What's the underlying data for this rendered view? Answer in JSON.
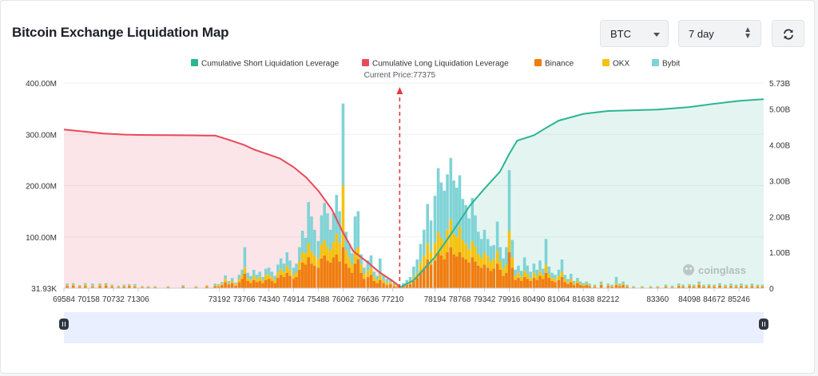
{
  "header": {
    "title": "Bitcoin Exchange Liquidation Map",
    "coin_select": "BTC",
    "range_select": "7 day",
    "refresh_icon": "refresh-icon"
  },
  "colors": {
    "short": "#2bb593",
    "long": "#e84a5a",
    "binance": "#f07d10",
    "okx": "#f5c211",
    "bybit": "#7fd3d6"
  },
  "chart_data": {
    "type": "bar",
    "current_price_label": "Current Price:77375",
    "current_price": 77375,
    "watermark": "coinglass",
    "legend": [
      {
        "name": "Cumulative Short Liquidation Leverage",
        "color": "#2bb593"
      },
      {
        "name": "Cumulative Long Liquidation Leverage",
        "color": "#e84a5a"
      },
      {
        "name": "Binance",
        "color": "#f07d10"
      },
      {
        "name": "OKX",
        "color": "#f5c211"
      },
      {
        "name": "Bybit",
        "color": "#7fd3d6"
      }
    ],
    "x_range": [
      69584,
      85820
    ],
    "x_ticks": [
      "69584",
      "70158",
      "70732",
      "71306",
      "73192",
      "73766",
      "74340",
      "74914",
      "75488",
      "76062",
      "76636",
      "77210",
      "78194",
      "78768",
      "79342",
      "79916",
      "80490",
      "81064",
      "81638",
      "82212",
      "83360",
      "84098",
      "84672",
      "85246"
    ],
    "y_left_ticks": [
      "31.93K",
      "100.00M",
      "200.00M",
      "300.00M",
      "400.00M"
    ],
    "y_left_range": [
      0,
      400
    ],
    "y_left_unit": "M",
    "y_right_ticks": [
      "0",
      "1.00B",
      "2.00B",
      "3.00B",
      "4.00B",
      "5.00B",
      "5.73B"
    ],
    "y_right_range": [
      0,
      5.73
    ],
    "y_right_unit": "B",
    "bars": [
      {
        "x": 69660,
        "b": 4,
        "o": 2,
        "y": 3
      },
      {
        "x": 69800,
        "b": 5,
        "o": 2,
        "y": 3
      },
      {
        "x": 69950,
        "b": 3,
        "o": 1,
        "y": 2
      },
      {
        "x": 70080,
        "b": 4,
        "o": 3,
        "y": 3
      },
      {
        "x": 70250,
        "b": 3,
        "o": 2,
        "y": 4
      },
      {
        "x": 70420,
        "b": 4,
        "o": 3,
        "y": 2
      },
      {
        "x": 70560,
        "b": 5,
        "o": 2,
        "y": 3
      },
      {
        "x": 70700,
        "b": 3,
        "o": 2,
        "y": 2
      },
      {
        "x": 70850,
        "b": 2,
        "o": 1,
        "y": 2
      },
      {
        "x": 70980,
        "b": 3,
        "o": 2,
        "y": 2
      },
      {
        "x": 71100,
        "b": 4,
        "o": 2,
        "y": 2
      },
      {
        "x": 71230,
        "b": 3,
        "o": 2,
        "y": 3
      },
      {
        "x": 71400,
        "b": 2,
        "o": 1,
        "y": 1
      },
      {
        "x": 71540,
        "b": 2,
        "o": 1,
        "y": 1
      },
      {
        "x": 71700,
        "b": 2,
        "o": 1,
        "y": 1
      },
      {
        "x": 72000,
        "b": 2,
        "o": 1,
        "y": 1
      },
      {
        "x": 72350,
        "b": 3,
        "o": 1,
        "y": 2
      },
      {
        "x": 72650,
        "b": 2,
        "o": 1,
        "y": 1
      },
      {
        "x": 72900,
        "b": 3,
        "o": 2,
        "y": 1
      },
      {
        "x": 73090,
        "b": 4,
        "o": 2,
        "y": 3
      },
      {
        "x": 73170,
        "b": 3,
        "o": 2,
        "y": 3
      },
      {
        "x": 73250,
        "b": 6,
        "o": 3,
        "y": 3
      },
      {
        "x": 73330,
        "b": 12,
        "o": 6,
        "y": 7
      },
      {
        "x": 73410,
        "b": 7,
        "o": 3,
        "y": 4
      },
      {
        "x": 73490,
        "b": 10,
        "o": 4,
        "y": 6
      },
      {
        "x": 73570,
        "b": 5,
        "o": 3,
        "y": 3
      },
      {
        "x": 73650,
        "b": 12,
        "o": 6,
        "y": 8
      },
      {
        "x": 73720,
        "b": 18,
        "o": 8,
        "y": 10
      },
      {
        "x": 73780,
        "b": 28,
        "o": 12,
        "y": 40
      },
      {
        "x": 73850,
        "b": 14,
        "o": 6,
        "y": 10
      },
      {
        "x": 73920,
        "b": 10,
        "o": 6,
        "y": 8
      },
      {
        "x": 73990,
        "b": 16,
        "o": 8,
        "y": 12
      },
      {
        "x": 74060,
        "b": 12,
        "o": 6,
        "y": 8
      },
      {
        "x": 74130,
        "b": 14,
        "o": 8,
        "y": 10
      },
      {
        "x": 74200,
        "b": 10,
        "o": 6,
        "y": 6
      },
      {
        "x": 74270,
        "b": 16,
        "o": 10,
        "y": 12
      },
      {
        "x": 74340,
        "b": 18,
        "o": 8,
        "y": 14
      },
      {
        "x": 74410,
        "b": 14,
        "o": 8,
        "y": 10
      },
      {
        "x": 74480,
        "b": 10,
        "o": 6,
        "y": 8
      },
      {
        "x": 74550,
        "b": 20,
        "o": 10,
        "y": 16
      },
      {
        "x": 74620,
        "b": 26,
        "o": 12,
        "y": 20
      },
      {
        "x": 74690,
        "b": 22,
        "o": 10,
        "y": 16
      },
      {
        "x": 74760,
        "b": 30,
        "o": 14,
        "y": 26
      },
      {
        "x": 74830,
        "b": 24,
        "o": 12,
        "y": 18
      },
      {
        "x": 74914,
        "b": 18,
        "o": 8,
        "y": 14
      },
      {
        "x": 74980,
        "b": 22,
        "o": 10,
        "y": 16
      },
      {
        "x": 75050,
        "b": 36,
        "o": 16,
        "y": 28
      },
      {
        "x": 75120,
        "b": 50,
        "o": 20,
        "y": 42
      },
      {
        "x": 75190,
        "b": 46,
        "o": 22,
        "y": 30
      },
      {
        "x": 75260,
        "b": 60,
        "o": 28,
        "y": 80
      },
      {
        "x": 75330,
        "b": 48,
        "o": 24,
        "y": 68
      },
      {
        "x": 75400,
        "b": 44,
        "o": 20,
        "y": 50
      },
      {
        "x": 75488,
        "b": 40,
        "o": 18,
        "y": 34
      },
      {
        "x": 75560,
        "b": 58,
        "o": 28,
        "y": 56
      },
      {
        "x": 75630,
        "b": 64,
        "o": 30,
        "y": 72
      },
      {
        "x": 75700,
        "b": 54,
        "o": 26,
        "y": 66
      },
      {
        "x": 75770,
        "b": 50,
        "o": 24,
        "y": 40
      },
      {
        "x": 75840,
        "b": 60,
        "o": 30,
        "y": 56
      },
      {
        "x": 75910,
        "b": 66,
        "o": 40,
        "y": 76
      },
      {
        "x": 75980,
        "b": 52,
        "o": 36,
        "y": 62
      },
      {
        "x": 76062,
        "b": 80,
        "o": 120,
        "y": 160
      },
      {
        "x": 76130,
        "b": 48,
        "o": 26,
        "y": 36
      },
      {
        "x": 76200,
        "b": 40,
        "o": 20,
        "y": 26
      },
      {
        "x": 76270,
        "b": 30,
        "o": 16,
        "y": 22
      },
      {
        "x": 76340,
        "b": 48,
        "o": 26,
        "y": 66
      },
      {
        "x": 76410,
        "b": 56,
        "o": 24,
        "y": 70
      },
      {
        "x": 76480,
        "b": 30,
        "o": 16,
        "y": 20
      },
      {
        "x": 76550,
        "b": 18,
        "o": 10,
        "y": 12
      },
      {
        "x": 76636,
        "b": 22,
        "o": 12,
        "y": 20
      },
      {
        "x": 76710,
        "b": 26,
        "o": 14,
        "y": 24
      },
      {
        "x": 76780,
        "b": 14,
        "o": 8,
        "y": 10
      },
      {
        "x": 76850,
        "b": 10,
        "o": 6,
        "y": 8
      },
      {
        "x": 76920,
        "b": 16,
        "o": 10,
        "y": 32
      },
      {
        "x": 77000,
        "b": 10,
        "o": 6,
        "y": 10
      },
      {
        "x": 77080,
        "b": 6,
        "o": 4,
        "y": 8
      },
      {
        "x": 77160,
        "b": 8,
        "o": 4,
        "y": 6
      },
      {
        "x": 77250,
        "b": 4,
        "o": 3,
        "y": 4
      },
      {
        "x": 77330,
        "b": 3,
        "o": 2,
        "y": 2
      },
      {
        "x": 77460,
        "b": 4,
        "o": 2,
        "y": 4
      },
      {
        "x": 77540,
        "b": 6,
        "o": 4,
        "y": 6
      },
      {
        "x": 77620,
        "b": 8,
        "o": 4,
        "y": 10
      },
      {
        "x": 77700,
        "b": 14,
        "o": 8,
        "y": 20
      },
      {
        "x": 77780,
        "b": 20,
        "o": 10,
        "y": 26
      },
      {
        "x": 77860,
        "b": 32,
        "o": 18,
        "y": 36
      },
      {
        "x": 77940,
        "b": 40,
        "o": 24,
        "y": 50
      },
      {
        "x": 78020,
        "b": 56,
        "o": 32,
        "y": 76
      },
      {
        "x": 78100,
        "b": 46,
        "o": 26,
        "y": 60
      },
      {
        "x": 78194,
        "b": 54,
        "o": 34,
        "y": 92
      },
      {
        "x": 78270,
        "b": 70,
        "o": 40,
        "y": 124
      },
      {
        "x": 78340,
        "b": 64,
        "o": 34,
        "y": 108
      },
      {
        "x": 78410,
        "b": 56,
        "o": 36,
        "y": 98
      },
      {
        "x": 78480,
        "b": 70,
        "o": 44,
        "y": 108
      },
      {
        "x": 78560,
        "b": 80,
        "o": 54,
        "y": 120
      },
      {
        "x": 78630,
        "b": 66,
        "o": 40,
        "y": 104
      },
      {
        "x": 78700,
        "b": 62,
        "o": 38,
        "y": 96
      },
      {
        "x": 78768,
        "b": 70,
        "o": 50,
        "y": 100
      },
      {
        "x": 78840,
        "b": 60,
        "o": 34,
        "y": 80
      },
      {
        "x": 78910,
        "b": 56,
        "o": 30,
        "y": 76
      },
      {
        "x": 78980,
        "b": 50,
        "o": 26,
        "y": 60
      },
      {
        "x": 79060,
        "b": 60,
        "o": 32,
        "y": 84
      },
      {
        "x": 79130,
        "b": 52,
        "o": 30,
        "y": 60
      },
      {
        "x": 79200,
        "b": 44,
        "o": 22,
        "y": 44
      },
      {
        "x": 79270,
        "b": 40,
        "o": 20,
        "y": 36
      },
      {
        "x": 79342,
        "b": 46,
        "o": 24,
        "y": 44
      },
      {
        "x": 79420,
        "b": 40,
        "o": 22,
        "y": 34
      },
      {
        "x": 79490,
        "b": 34,
        "o": 18,
        "y": 30
      },
      {
        "x": 79560,
        "b": 38,
        "o": 20,
        "y": 26
      },
      {
        "x": 79640,
        "b": 48,
        "o": 26,
        "y": 56
      },
      {
        "x": 79710,
        "b": 36,
        "o": 16,
        "y": 28
      },
      {
        "x": 79780,
        "b": 24,
        "o": 14,
        "y": 20
      },
      {
        "x": 79850,
        "b": 30,
        "o": 16,
        "y": 34
      },
      {
        "x": 79916,
        "b": 70,
        "o": 42,
        "y": 118
      },
      {
        "x": 79990,
        "b": 40,
        "o": 20,
        "y": 34
      },
      {
        "x": 80060,
        "b": 16,
        "o": 8,
        "y": 12
      },
      {
        "x": 80130,
        "b": 20,
        "o": 10,
        "y": 14
      },
      {
        "x": 80200,
        "b": 14,
        "o": 8,
        "y": 12
      },
      {
        "x": 80270,
        "b": 22,
        "o": 12,
        "y": 26
      },
      {
        "x": 80340,
        "b": 18,
        "o": 10,
        "y": 16
      },
      {
        "x": 80410,
        "b": 14,
        "o": 6,
        "y": 12
      },
      {
        "x": 80490,
        "b": 20,
        "o": 10,
        "y": 18
      },
      {
        "x": 80560,
        "b": 16,
        "o": 8,
        "y": 12
      },
      {
        "x": 80630,
        "b": 24,
        "o": 10,
        "y": 20
      },
      {
        "x": 80700,
        "b": 18,
        "o": 8,
        "y": 12
      },
      {
        "x": 80770,
        "b": 30,
        "o": 16,
        "y": 50
      },
      {
        "x": 80840,
        "b": 20,
        "o": 8,
        "y": 14
      },
      {
        "x": 80910,
        "b": 14,
        "o": 6,
        "y": 10
      },
      {
        "x": 80980,
        "b": 12,
        "o": 6,
        "y": 8
      },
      {
        "x": 81064,
        "b": 16,
        "o": 8,
        "y": 12
      },
      {
        "x": 81140,
        "b": 22,
        "o": 10,
        "y": 24
      },
      {
        "x": 81210,
        "b": 12,
        "o": 6,
        "y": 8
      },
      {
        "x": 81280,
        "b": 8,
        "o": 4,
        "y": 6
      },
      {
        "x": 81350,
        "b": 12,
        "o": 6,
        "y": 10
      },
      {
        "x": 81420,
        "b": 6,
        "o": 4,
        "y": 4
      },
      {
        "x": 81500,
        "b": 10,
        "o": 4,
        "y": 6
      },
      {
        "x": 81570,
        "b": 6,
        "o": 3,
        "y": 4
      },
      {
        "x": 81638,
        "b": 4,
        "o": 2,
        "y": 4
      },
      {
        "x": 81710,
        "b": 6,
        "o": 3,
        "y": 4
      },
      {
        "x": 81780,
        "b": 4,
        "o": 2,
        "y": 3
      },
      {
        "x": 81900,
        "b": 3,
        "o": 2,
        "y": 2
      },
      {
        "x": 82050,
        "b": 6,
        "o": 3,
        "y": 4
      },
      {
        "x": 82212,
        "b": 4,
        "o": 2,
        "y": 3
      },
      {
        "x": 82300,
        "b": 3,
        "o": 2,
        "y": 2
      },
      {
        "x": 82400,
        "b": 6,
        "o": 4,
        "y": 12
      },
      {
        "x": 82480,
        "b": 4,
        "o": 2,
        "y": 3
      },
      {
        "x": 82560,
        "b": 6,
        "o": 3,
        "y": 4
      },
      {
        "x": 82650,
        "b": 3,
        "o": 2,
        "y": 2
      },
      {
        "x": 82800,
        "b": 2,
        "o": 1,
        "y": 1
      },
      {
        "x": 83000,
        "b": 2,
        "o": 1,
        "y": 1
      },
      {
        "x": 83200,
        "b": 2,
        "o": 1,
        "y": 1
      },
      {
        "x": 83360,
        "b": 2,
        "o": 1,
        "y": 1
      },
      {
        "x": 83550,
        "b": 3,
        "o": 2,
        "y": 2
      },
      {
        "x": 83700,
        "b": 2,
        "o": 1,
        "y": 2
      },
      {
        "x": 83850,
        "b": 4,
        "o": 2,
        "y": 3
      },
      {
        "x": 83950,
        "b": 3,
        "o": 2,
        "y": 2
      },
      {
        "x": 84098,
        "b": 4,
        "o": 2,
        "y": 2
      },
      {
        "x": 84200,
        "b": 3,
        "o": 2,
        "y": 2
      },
      {
        "x": 84320,
        "b": 6,
        "o": 3,
        "y": 4
      },
      {
        "x": 84430,
        "b": 3,
        "o": 2,
        "y": 2
      },
      {
        "x": 84550,
        "b": 4,
        "o": 2,
        "y": 2
      },
      {
        "x": 84672,
        "b": 3,
        "o": 2,
        "y": 2
      },
      {
        "x": 84800,
        "b": 5,
        "o": 2,
        "y": 3
      },
      {
        "x": 84930,
        "b": 3,
        "o": 2,
        "y": 2
      },
      {
        "x": 85060,
        "b": 4,
        "o": 2,
        "y": 3
      },
      {
        "x": 85180,
        "b": 3,
        "o": 2,
        "y": 2
      },
      {
        "x": 85300,
        "b": 4,
        "o": 2,
        "y": 3
      },
      {
        "x": 85420,
        "b": 3,
        "o": 2,
        "y": 2
      },
      {
        "x": 85550,
        "b": 4,
        "o": 2,
        "y": 3
      },
      {
        "x": 85680,
        "b": 3,
        "o": 2,
        "y": 2
      },
      {
        "x": 85790,
        "b": 3,
        "o": 2,
        "y": 2
      }
    ],
    "long_curve": [
      [
        69584,
        4.43
      ],
      [
        70000,
        4.38
      ],
      [
        70500,
        4.32
      ],
      [
        71000,
        4.29
      ],
      [
        71306,
        4.28
      ],
      [
        72500,
        4.27
      ],
      [
        73100,
        4.26
      ],
      [
        73400,
        4.15
      ],
      [
        73766,
        4.0
      ],
      [
        74000,
        3.87
      ],
      [
        74340,
        3.73
      ],
      [
        74600,
        3.62
      ],
      [
        74914,
        3.38
      ],
      [
        75200,
        3.1
      ],
      [
        75488,
        2.72
      ],
      [
        75800,
        2.2
      ],
      [
        76062,
        1.55
      ],
      [
        76300,
        1.03
      ],
      [
        76636,
        0.72
      ],
      [
        76900,
        0.45
      ],
      [
        77210,
        0.2
      ],
      [
        77375,
        0.05
      ]
    ],
    "short_curve": [
      [
        77375,
        0.02
      ],
      [
        77700,
        0.22
      ],
      [
        78000,
        0.62
      ],
      [
        78194,
        0.87
      ],
      [
        78500,
        1.4
      ],
      [
        78768,
        1.88
      ],
      [
        79000,
        2.3
      ],
      [
        79342,
        2.78
      ],
      [
        79700,
        3.25
      ],
      [
        79916,
        3.75
      ],
      [
        80100,
        4.12
      ],
      [
        80490,
        4.27
      ],
      [
        80800,
        4.5
      ],
      [
        81064,
        4.68
      ],
      [
        81638,
        4.87
      ],
      [
        82212,
        4.95
      ],
      [
        83360,
        4.99
      ],
      [
        84098,
        5.06
      ],
      [
        84672,
        5.15
      ],
      [
        85246,
        5.23
      ],
      [
        85820,
        5.28
      ]
    ]
  }
}
